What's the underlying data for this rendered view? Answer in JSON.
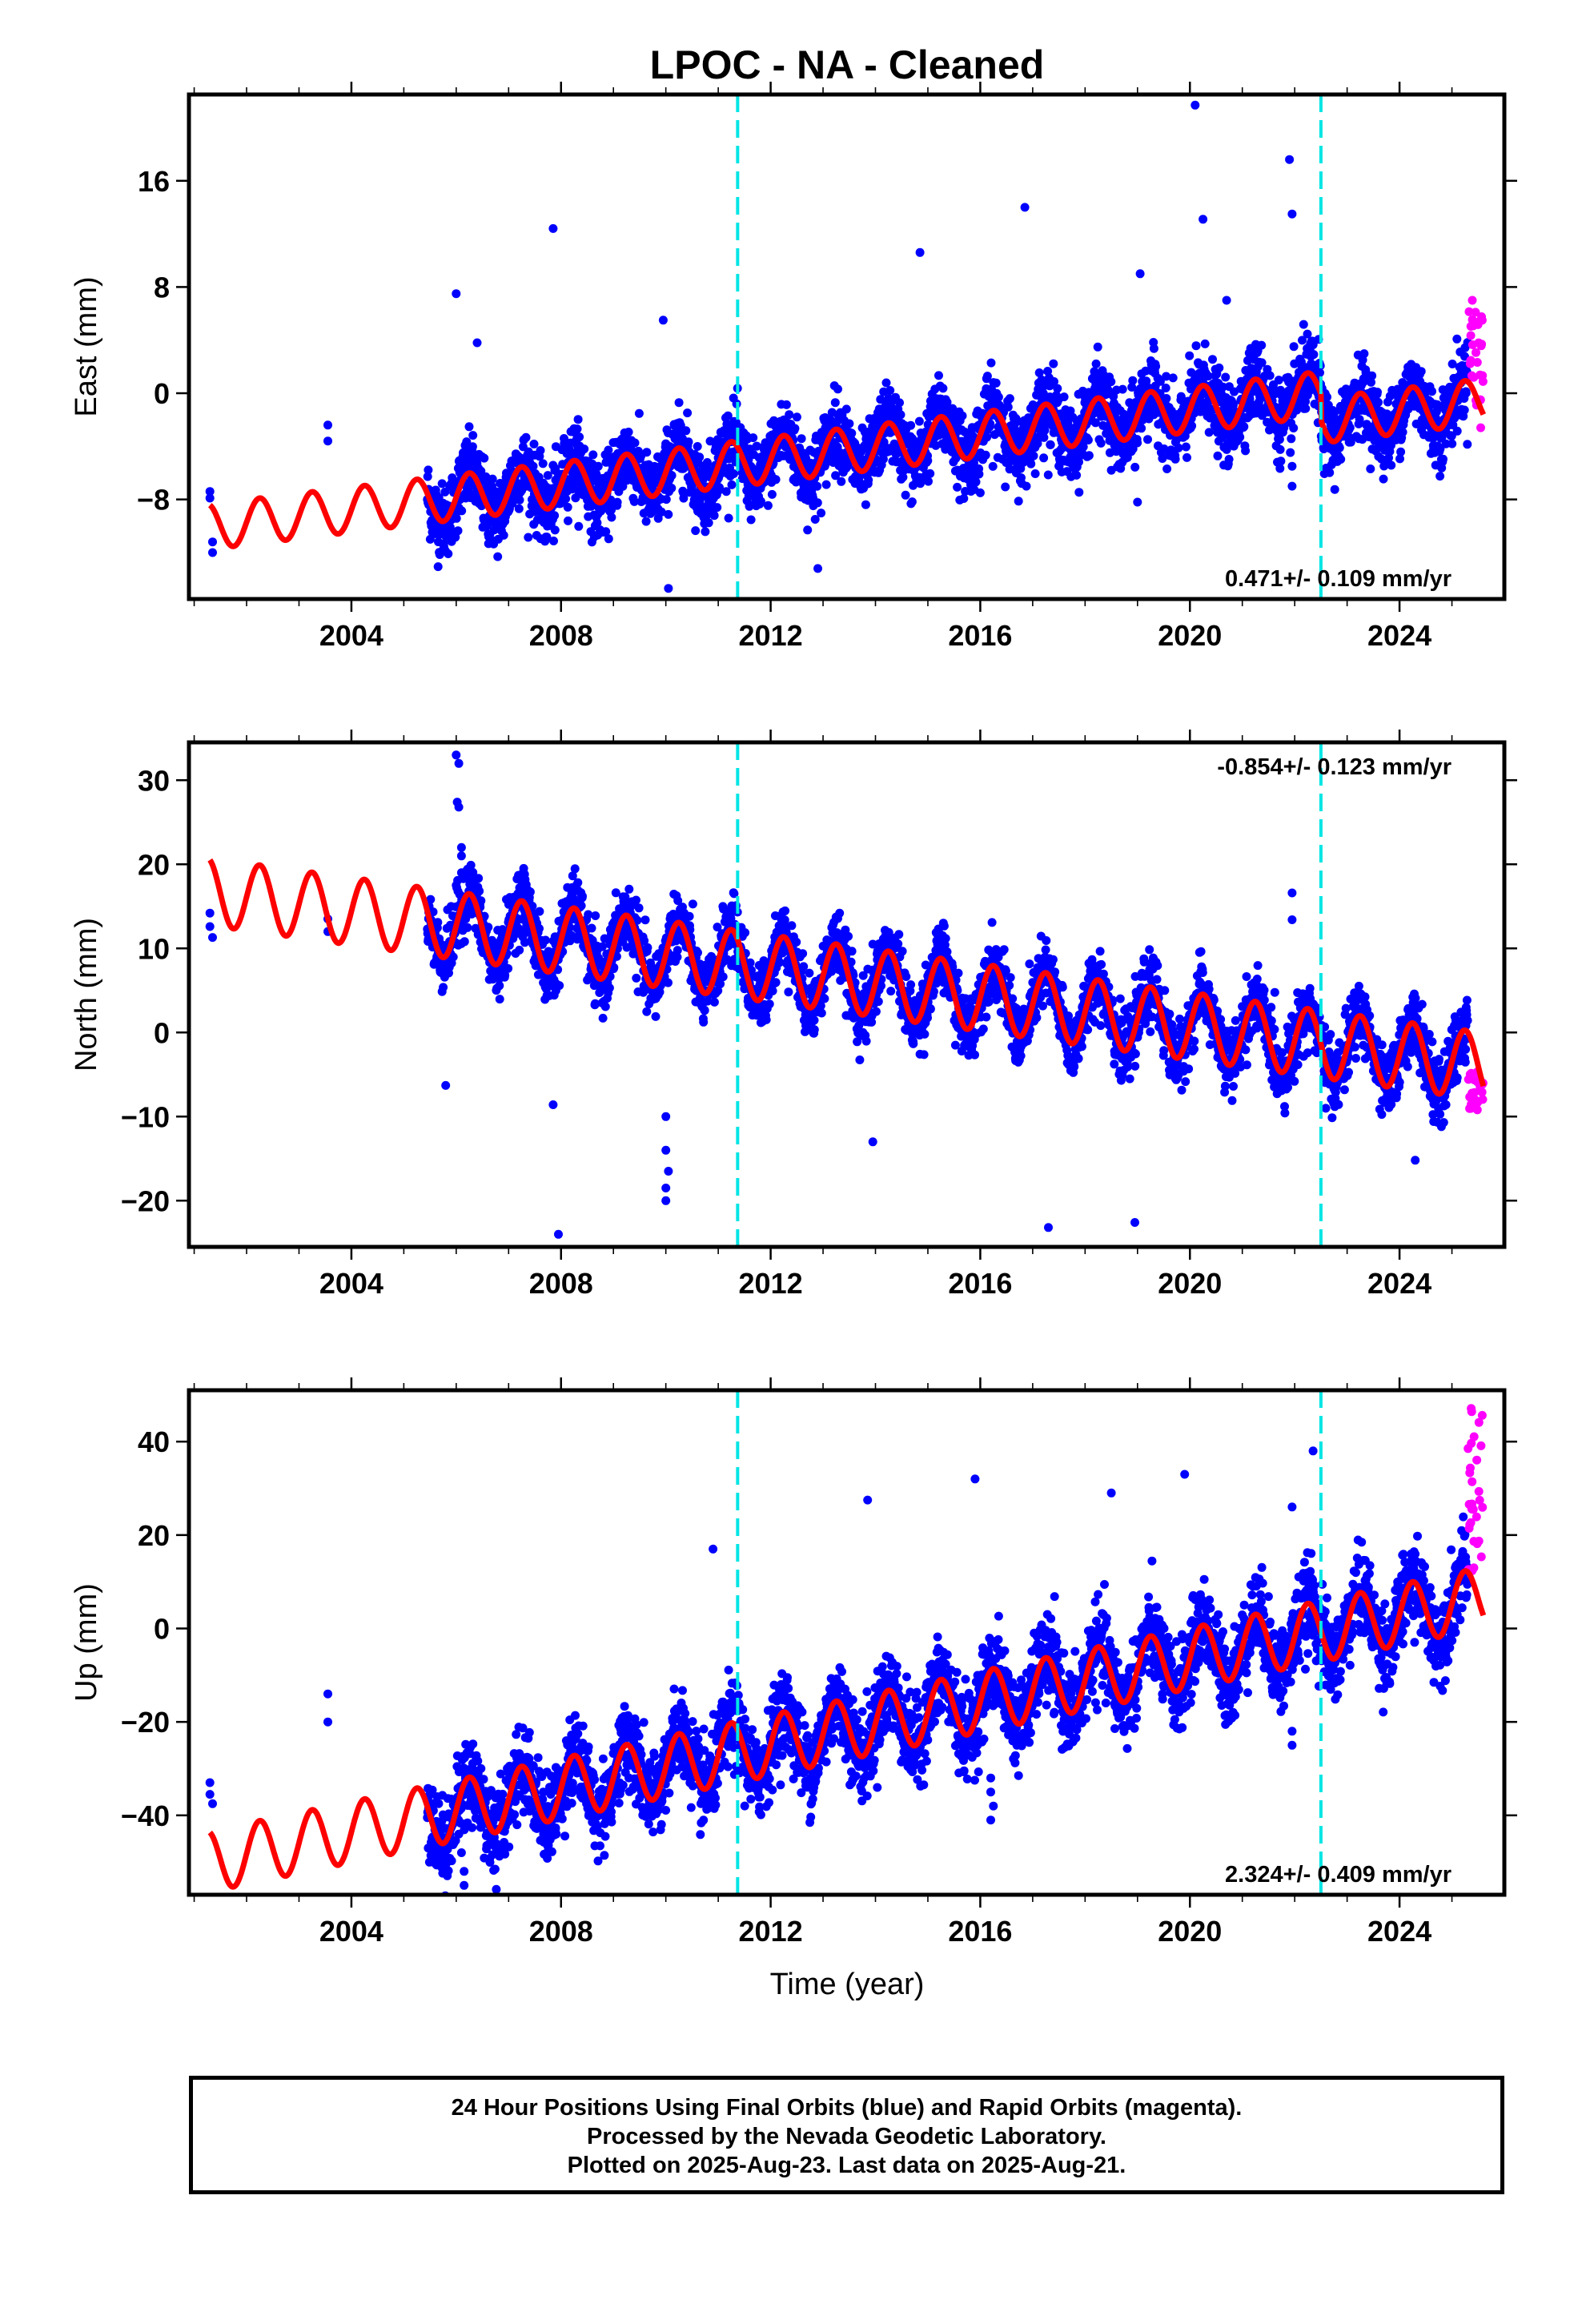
{
  "chart_data": {
    "title": "LPOC  - NA - Cleaned",
    "xlabel": "Time (year)",
    "xlim": [
      2000.9,
      2026.0
    ],
    "x_ticks": [
      2004,
      2008,
      2012,
      2016,
      2020,
      2024
    ],
    "x_tick_labels": [
      "2004",
      "2008",
      "2012",
      "2016",
      "2020",
      "2024"
    ],
    "breaks": [
      2011.37,
      2022.5
    ],
    "colors": {
      "final_orbits": "#0000ff",
      "rapid_orbits": "#ff00ff",
      "model": "#ff0000",
      "breaks": "#00e5e5"
    },
    "panels": [
      {
        "type": "scatter",
        "name": "east",
        "ylabel": "East (mm)",
        "ylim": [
          -15.5,
          22.5
        ],
        "y_ticks": [
          -8,
          0,
          8,
          16
        ],
        "y_tick_labels": [
          "−8",
          "0",
          "8",
          "16"
        ],
        "rate": "0.471+/- 0.109 mm/yr",
        "rate_position": "bottom-right",
        "rate_mm_yr": 0.471,
        "offset": -4.3,
        "amplitude": 1.7,
        "noise": 1.4,
        "model_steps": [
          {
            "x": 2022.5,
            "dy": -2.0
          }
        ],
        "early_points": [
          [
            2001.3,
            -7.4
          ],
          [
            2001.3,
            -7.9
          ],
          [
            2001.35,
            -11.2
          ],
          [
            2001.35,
            -12.0
          ],
          [
            2003.55,
            -2.4
          ],
          [
            2003.55,
            -3.6
          ]
        ],
        "outliers": [
          [
            2006.0,
            7.5
          ],
          [
            2007.85,
            12.4
          ],
          [
            2009.95,
            5.5
          ],
          [
            2010.05,
            -14.7
          ],
          [
            2012.85,
            -9.5
          ],
          [
            2012.9,
            -13.2
          ],
          [
            2014.85,
            10.6
          ],
          [
            2016.85,
            14.0
          ],
          [
            2019.05,
            9.0
          ],
          [
            2020.1,
            21.7
          ],
          [
            2020.25,
            13.1
          ],
          [
            2021.9,
            17.6
          ],
          [
            2021.95,
            13.5
          ],
          [
            2021.95,
            -5.5
          ],
          [
            2021.95,
            -7.0
          ],
          [
            2020.7,
            7.0
          ],
          [
            2006.4,
            3.8
          ],
          [
            2016.0,
            -7.5
          ],
          [
            2019.0,
            -8.2
          ],
          [
            2018.5,
            -5.8
          ]
        ],
        "rapid_orbits": {
          "x_range": [
            2025.3,
            2025.6
          ],
          "y_range": [
            -1.0,
            7.0
          ],
          "extra": [
            [
              2025.55,
              -2.6
            ]
          ]
        }
      },
      {
        "type": "scatter",
        "name": "north",
        "ylabel": "North (mm)",
        "ylim": [
          -25.5,
          34.5
        ],
        "y_ticks": [
          -20,
          -10,
          0,
          10,
          20,
          30
        ],
        "y_tick_labels": [
          "−20",
          "−10",
          "0",
          "10",
          "20",
          "30"
        ],
        "rate": "-0.854+/- 0.123 mm/yr",
        "rate_position": "top-right",
        "rate_mm_yr": -0.854,
        "offset": 6.3,
        "amplitude": 4.0,
        "noise": 1.9,
        "model_steps": [],
        "early_points": [
          [
            2001.3,
            14.2
          ],
          [
            2001.3,
            12.6
          ],
          [
            2001.35,
            11.3
          ],
          [
            2003.55,
            13.5
          ],
          [
            2003.55,
            12.0
          ]
        ],
        "outliers": [
          [
            2006.0,
            33.0
          ],
          [
            2006.05,
            32.0
          ],
          [
            2006.02,
            27.4
          ],
          [
            2006.05,
            26.8
          ],
          [
            2006.1,
            22.0
          ],
          [
            2006.1,
            21.0
          ],
          [
            2006.1,
            19.0
          ],
          [
            2006.0,
            17.5
          ],
          [
            2005.8,
            -6.3
          ],
          [
            2007.85,
            -8.6
          ],
          [
            2007.95,
            -24.0
          ],
          [
            2010.0,
            -10.0
          ],
          [
            2010.0,
            -14.0
          ],
          [
            2010.05,
            -16.5
          ],
          [
            2010.0,
            -18.5
          ],
          [
            2010.0,
            -20.0
          ],
          [
            2013.95,
            10.5
          ],
          [
            2013.95,
            -13.0
          ],
          [
            2017.3,
            -23.2
          ],
          [
            2018.95,
            -22.6
          ],
          [
            2021.95,
            16.6
          ],
          [
            2021.95,
            13.4
          ],
          [
            2021.55,
            3.0
          ],
          [
            2024.3,
            -15.2
          ]
        ],
        "rapid_orbits": {
          "x_range": [
            2025.3,
            2025.6
          ],
          "y_range": [
            -9.5,
            -4.0
          ],
          "extra": []
        }
      },
      {
        "type": "scatter",
        "name": "up",
        "ylabel": "Up (mm)",
        "ylim": [
          -57.0,
          51.0
        ],
        "y_ticks": [
          -40,
          -20,
          0,
          20,
          40
        ],
        "y_tick_labels": [
          "−40",
          "−20",
          "0",
          "20",
          "40"
        ],
        "rate": "2.324+/- 0.409 mm/yr",
        "rate_position": "bottom-right",
        "rate_mm_yr": 2.324,
        "offset": -21.5,
        "amplitude": 6.5,
        "noise": 4.5,
        "model_steps": [],
        "early_points": [
          [
            2001.3,
            -33.0
          ],
          [
            2001.3,
            -35.5
          ],
          [
            2001.35,
            -37.5
          ],
          [
            2003.55,
            -14.0
          ],
          [
            2003.55,
            -20.0
          ]
        ],
        "outliers": [
          [
            2006.05,
            -44.0
          ],
          [
            2006.1,
            -48.0
          ],
          [
            2006.15,
            -52.0
          ],
          [
            2006.15,
            -55.0
          ],
          [
            2010.9,
            17.0
          ],
          [
            2013.85,
            27.5
          ],
          [
            2015.9,
            32.0
          ],
          [
            2016.2,
            -32.0
          ],
          [
            2016.2,
            -35.0
          ],
          [
            2016.25,
            -38.0
          ],
          [
            2016.2,
            -41.0
          ],
          [
            2018.5,
            29.0
          ],
          [
            2019.9,
            33.0
          ],
          [
            2021.95,
            -22.0
          ],
          [
            2021.95,
            -25.0
          ],
          [
            2021.95,
            26.0
          ],
          [
            2022.35,
            38.0
          ]
        ],
        "rapid_orbits": {
          "x_range": [
            2025.3,
            2025.6
          ],
          "y_range": [
            12.0,
            48.0
          ],
          "extra": []
        }
      }
    ]
  },
  "footer": {
    "line1": "24 Hour Positions Using Final Orbits (blue) and Rapid Orbits (magenta).",
    "line2": "Processed by the Nevada Geodetic Laboratory.",
    "line3": "Plotted on 2025-Aug-23. Last data on 2025-Aug-21."
  }
}
